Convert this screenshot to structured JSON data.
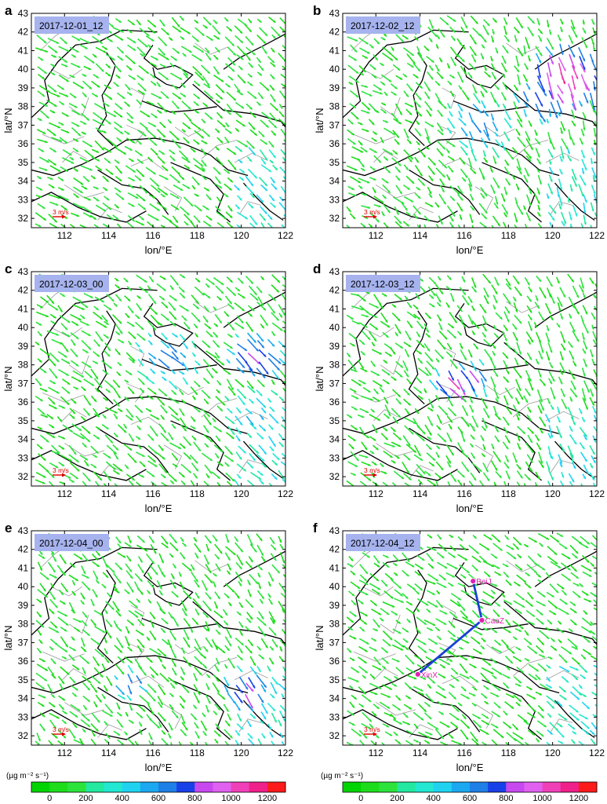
{
  "panels": [
    {
      "letter": "a",
      "date": "2017-12-01_12",
      "scale_label": "3 m/s",
      "xlabel": "lon/°E",
      "ylabel": "lat/°N",
      "xticks": [
        "112",
        "114",
        "116",
        "118",
        "120",
        "122"
      ],
      "yticks": [
        "32",
        "33",
        "34",
        "35",
        "36",
        "37",
        "38",
        "39",
        "40",
        "41",
        "42",
        "43"
      ],
      "hotspots": [],
      "route": []
    },
    {
      "letter": "b",
      "date": "2017-12-02_12",
      "scale_label": "3 m/s",
      "xlabel": "lon/°E",
      "ylabel": "lat/°N",
      "xticks": [
        "112",
        "114",
        "116",
        "118",
        "120",
        "122"
      ],
      "yticks": [
        "32",
        "33",
        "34",
        "35",
        "36",
        "37",
        "38",
        "39",
        "40",
        "41",
        "42",
        "43"
      ],
      "hotspots": [
        {
          "lon": 120.5,
          "lat": 39.8,
          "v": 1250,
          "r": 1.8
        },
        {
          "lon": 119.5,
          "lat": 38.6,
          "v": 950,
          "r": 1.3
        },
        {
          "lon": 116.5,
          "lat": 37.2,
          "v": 700,
          "r": 1.6
        }
      ],
      "route": []
    },
    {
      "letter": "c",
      "date": "2017-12-03_00",
      "scale_label": "3 m/s",
      "xlabel": "lon/°E",
      "ylabel": "lat/°N",
      "xticks": [
        "112",
        "114",
        "116",
        "118",
        "120",
        "122"
      ],
      "yticks": [
        "32",
        "33",
        "34",
        "35",
        "36",
        "37",
        "38",
        "39",
        "40",
        "41",
        "42",
        "43"
      ],
      "hotspots": [
        {
          "lon": 120.5,
          "lat": 38.6,
          "v": 950,
          "r": 1.4
        },
        {
          "lon": 116.5,
          "lat": 38.5,
          "v": 750,
          "r": 1.5
        },
        {
          "lon": 120.5,
          "lat": 35.5,
          "v": 550,
          "r": 1.6
        }
      ],
      "route": []
    },
    {
      "letter": "d",
      "date": "2017-12-03_12",
      "scale_label": "3 m/s",
      "xlabel": "lon/°E",
      "ylabel": "lat/°N",
      "xticks": [
        "112",
        "114",
        "116",
        "118",
        "120",
        "122"
      ],
      "yticks": [
        "32",
        "33",
        "34",
        "35",
        "36",
        "37",
        "38",
        "39",
        "40",
        "41",
        "42",
        "43"
      ],
      "hotspots": [
        {
          "lon": 115.3,
          "lat": 37.2,
          "v": 1150,
          "r": 0.9
        },
        {
          "lon": 116.2,
          "lat": 37.5,
          "v": 900,
          "r": 1.0
        }
      ],
      "route": []
    },
    {
      "letter": "e",
      "date": "2017-12-04_00",
      "scale_label": "3 m/s",
      "xlabel": "lon/°E",
      "ylabel": "lat/°N",
      "xticks": [
        "112",
        "114",
        "116",
        "118",
        "120",
        "122"
      ],
      "yticks": [
        "32",
        "33",
        "34",
        "35",
        "36",
        "37",
        "38",
        "39",
        "40",
        "41",
        "42",
        "43"
      ],
      "hotspots": [
        {
          "lon": 120.2,
          "lat": 34.6,
          "v": 1000,
          "r": 1.2
        },
        {
          "lon": 114.8,
          "lat": 35.0,
          "v": 850,
          "r": 0.9
        }
      ],
      "route": []
    },
    {
      "letter": "f",
      "date": "2017-12-04_12",
      "scale_label": "3 m/s",
      "xlabel": "lon/°E",
      "ylabel": "lat/°N",
      "xticks": [
        "112",
        "114",
        "116",
        "118",
        "120",
        "122"
      ],
      "yticks": [
        "32",
        "33",
        "34",
        "35",
        "36",
        "37",
        "38",
        "39",
        "40",
        "41",
        "42",
        "43"
      ],
      "hotspots": [],
      "route": [
        {
          "name": "BeiJ",
          "lon": 116.4,
          "lat": 40.3
        },
        {
          "name": "CaoZ",
          "lon": 116.8,
          "lat": 38.2
        },
        {
          "name": "XinX",
          "lon": 113.9,
          "lat": 35.3
        }
      ]
    }
  ],
  "colorbar": {
    "unit": "(µg m⁻² s⁻¹)",
    "ticks": [
      "0",
      "200",
      "400",
      "600",
      "800",
      "1000",
      "1200"
    ],
    "tick_values": [
      0,
      200,
      400,
      600,
      800,
      1000,
      1200
    ],
    "range": [
      -100,
      1300
    ],
    "colors": [
      "#00d400",
      "#1ddd1a",
      "#2ce33c",
      "#22e8a0",
      "#22e8d2",
      "#1fd3f0",
      "#1aa8f0",
      "#1e7fe6",
      "#1840e8",
      "#c848f0",
      "#e060f0",
      "#f040b8",
      "#f0208a",
      "#ff1a1a"
    ]
  },
  "style": {
    "route_color": "#1b3fd8",
    "label_color": "#e020b0",
    "date_box": "#a6b3ee",
    "scale_color": "#e00000"
  }
}
